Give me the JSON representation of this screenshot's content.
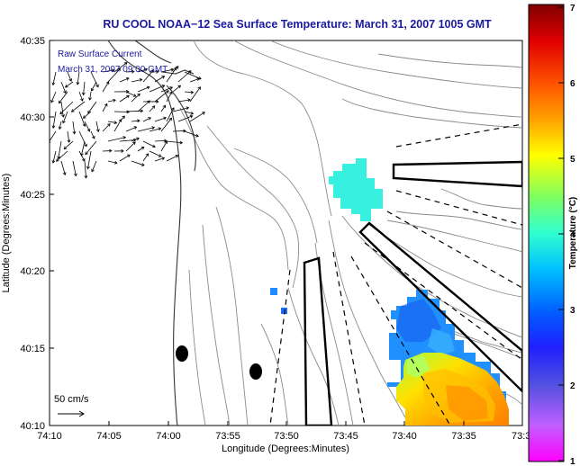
{
  "title": "RU COOL  NOAA−12  Sea Surface Temperature:  March 31, 2007 1005 GMT",
  "legend": {
    "line1": "Raw Surface Current",
    "line2": "March 31, 2007 09:00 GMT",
    "scale_label": "50 cm/s"
  },
  "axes": {
    "xlabel": "Longitude (Degrees:Minutes)",
    "ylabel": "Latitude (Degrees:Minutes)",
    "xticks": [
      "74:10",
      "74:05",
      "74:00",
      "73:55",
      "73:50",
      "73:45",
      "73:40",
      "73:35",
      "73:3"
    ],
    "yticks": [
      "40:35",
      "40:30",
      "40:25",
      "40:20",
      "40:15",
      "40:10"
    ]
  },
  "colorbar": {
    "label": "Temperature (°C)",
    "ticks": [
      "7",
      "6",
      "5",
      "4",
      "3",
      "2",
      "1"
    ]
  },
  "chart_data": {
    "type": "heatmap",
    "title": "RU COOL  NOAA−12  Sea Surface Temperature:  March 31, 2007 1005 GMT",
    "xlabel": "Longitude (Degrees:Minutes)",
    "ylabel": "Latitude (Degrees:Minutes)",
    "xlim": [
      "74:10",
      "73:30"
    ],
    "ylim": [
      "40:10",
      "40:35"
    ],
    "colorbar_range": [
      1,
      7
    ],
    "colorbar_label": "Temperature (°C)",
    "sst_patches": [
      {
        "region": "near 73:44W 40:26N",
        "temperature_c": 3.5
      },
      {
        "region": "near 73:51W 40:18N",
        "temperature_c": 2.8
      },
      {
        "region": "southeast corner, 73:36W 40:12N",
        "temperature_c_range": [
          2.0,
          5.0
        ]
      }
    ],
    "vector_scale_cm_s": 50
  }
}
